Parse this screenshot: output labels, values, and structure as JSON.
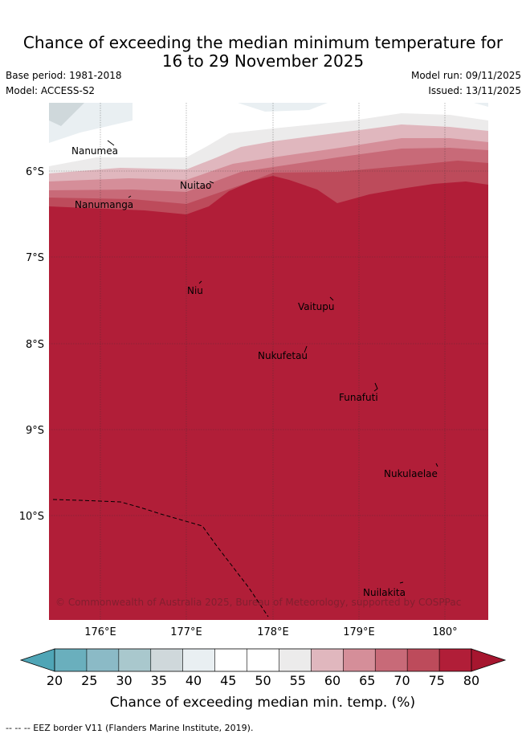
{
  "header": {
    "title_line1": "Chance of exceeding the median minimum temperature for",
    "title_line2": "16 to 29 November 2025",
    "base_period": "Base period: 1981-2018",
    "model": "Model: ACCESS-S2",
    "model_run": "Model run: 09/11/2025",
    "issued": "Issued: 13/11/2025"
  },
  "map": {
    "lat_ticks": [
      "6°S",
      "7°S",
      "8°S",
      "9°S",
      "10°S"
    ],
    "lon_ticks": [
      "176°E",
      "177°E",
      "178°E",
      "179°E",
      "180°"
    ],
    "places": [
      "Nanumea",
      "Nuitao",
      "Nanumanga",
      "Niu",
      "Vaitupu",
      "Nukufetau",
      "Funafuti",
      "Nukulaelae",
      "Nuilakita"
    ],
    "copyright": "© Commonwealth of Australia 2025, Bureau of Meteorology, supported by COSPPac"
  },
  "colorbar": {
    "ticks": [
      "20",
      "25",
      "30",
      "35",
      "40",
      "45",
      "50",
      "55",
      "60",
      "65",
      "70",
      "75",
      "80"
    ],
    "colors": [
      "#6aafbd",
      "#8bbac6",
      "#a9c8cd",
      "#cfd8db",
      "#e9eff2",
      "#ffffff",
      "#ffffff",
      "#ecebeb",
      "#e0b7be",
      "#d58e99",
      "#c86a78",
      "#bd4b5b",
      "#b11e38"
    ],
    "label": "Chance of exceeding median min. temp. (%)"
  },
  "footer": {
    "eez_note": "--  --  -- EEZ border V11 (Flanders Marine Institute, 2019)."
  }
}
